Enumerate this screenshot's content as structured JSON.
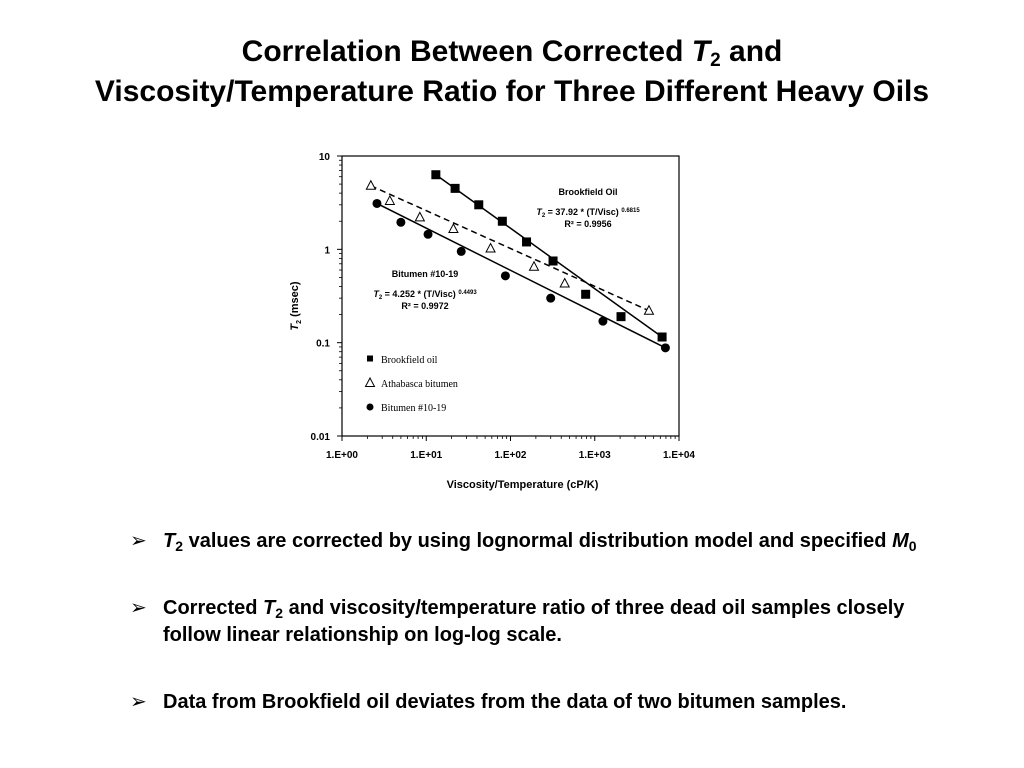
{
  "slide": {
    "title_line1_pre": "Correlation Between Corrected ",
    "title_line1_var": "T",
    "title_line1_sub": "2",
    "title_line1_post": " and",
    "title_line2": "Viscosity/Temperature Ratio for Three Different Heavy Oils",
    "bullet_symbol": "➢",
    "bullets": [
      {
        "var": "T",
        "sub": "2",
        "text": " values are corrected by using lognormal distribution model and specified ",
        "var2": "M",
        "sub2": "0"
      },
      {
        "pre": "Corrected ",
        "var": "T",
        "sub": "2",
        "text": " and viscosity/temperature ratio of three dead oil samples closely follow linear relationship on log-log scale."
      },
      {
        "text": "Data from Brookfield oil deviates from the data of two bitumen samples."
      }
    ]
  },
  "chart_data": {
    "type": "scatter",
    "x_scale": "log",
    "y_scale": "log",
    "xlabel": "Viscosity/Temperature  (cP/K)",
    "ylabel_var": "T",
    "ylabel_sub": "2",
    "ylabel_rest": " (msec)",
    "xlim": [
      1,
      10000
    ],
    "ylim": [
      0.01,
      10
    ],
    "x_ticks": [
      "1.E+00",
      "1.E+01",
      "1.E+02",
      "1.E+03",
      "1.E+04"
    ],
    "y_ticks": [
      "0.01",
      "0.1",
      "1",
      "10"
    ],
    "grid": false,
    "legend_position": "lower-left",
    "series": [
      {
        "name": "Brookfield oil",
        "marker": "square",
        "fill": "#000000",
        "x": [
          13,
          22,
          42,
          80,
          155,
          320,
          780,
          2050,
          6300
        ],
        "y": [
          6.3,
          4.5,
          3.0,
          2.0,
          1.2,
          0.75,
          0.33,
          0.19,
          0.115
        ],
        "fit": {
          "line": "solid",
          "x": [
            13,
            6300
          ],
          "y": [
            6.3,
            0.115
          ]
        }
      },
      {
        "name": "Athabasca bitumen",
        "marker": "triangle-open",
        "fill": "none",
        "x": [
          2.2,
          3.7,
          8.4,
          21,
          58,
          190,
          440,
          4400
        ],
        "y": [
          4.8,
          3.3,
          2.2,
          1.65,
          1.02,
          0.65,
          0.43,
          0.22
        ],
        "fit": {
          "line": "dashed",
          "x": [
            2.2,
            4400
          ],
          "y": [
            4.8,
            0.22
          ]
        }
      },
      {
        "name": "Bitumen #10-19",
        "marker": "circle",
        "fill": "#000000",
        "x": [
          2.6,
          5.0,
          10.5,
          26,
          87,
          300,
          1250,
          6900
        ],
        "y": [
          3.1,
          1.95,
          1.45,
          0.95,
          0.52,
          0.3,
          0.17,
          0.088
        ],
        "fit": {
          "line": "solid",
          "x": [
            2.6,
            6900
          ],
          "y": [
            3.1,
            0.088
          ]
        }
      }
    ],
    "annotations": [
      {
        "label": "Brookfield Oil",
        "eq_var": "T",
        "eq_sub": "2",
        "eq_rest": " = 37.92 * (T/Visc) ",
        "eq_exp": "0.6815",
        "r2": "R² = 0.9956"
      },
      {
        "label": "Bitumen #10-19",
        "eq_var": "T",
        "eq_sub": "2",
        "eq_rest": " = 4.252 * (T/Visc) ",
        "eq_exp": "0.4493",
        "r2": "R² = 0.9972"
      }
    ]
  }
}
